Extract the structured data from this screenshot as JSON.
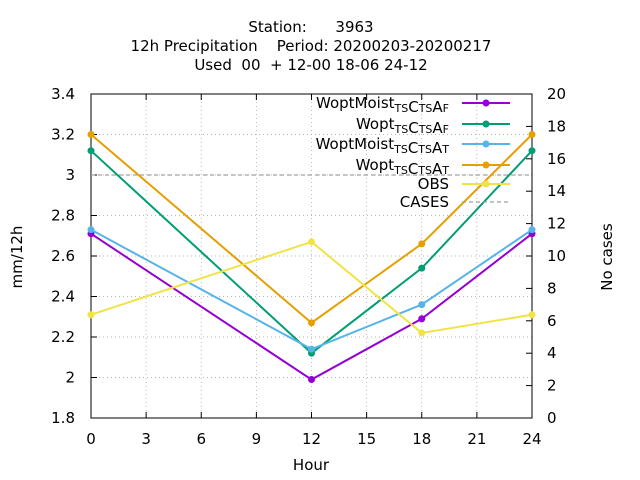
{
  "chart_data": {
    "type": "line",
    "title_lines": [
      "Station:      3963",
      "12h Precipitation    Period: 20200203-20200217",
      "Used  00  + 12-00 18-06 24-12"
    ],
    "xlabel": "Hour",
    "ylabel": "mm/12h",
    "y2label": "No cases",
    "xlim": [
      0,
      24
    ],
    "ylim": [
      1.8,
      3.4
    ],
    "y2lim": [
      0,
      20
    ],
    "xticks": [
      0,
      3,
      6,
      9,
      12,
      15,
      18,
      21,
      24
    ],
    "yticks": [
      1.8,
      2.0,
      2.2,
      2.4,
      2.6,
      2.8,
      3.0,
      3.2,
      3.4
    ],
    "ytick_labels": [
      "1.8",
      "2",
      "2.2",
      "2.4",
      "2.6",
      "2.8",
      "3",
      "3.2",
      "3.4"
    ],
    "y2ticks": [
      0,
      2,
      4,
      6,
      8,
      10,
      12,
      14,
      16,
      18,
      20
    ],
    "grid": true,
    "legend_position": "top-right",
    "x": [
      0,
      12,
      18,
      24
    ],
    "series": [
      {
        "name": "WoptMoist_TSC_TSA_F",
        "color": "#9400d3",
        "marker": "circle",
        "values": [
          2.71,
          1.99,
          2.29,
          2.71
        ]
      },
      {
        "name": "Wopt_TSC_TSA_F",
        "color": "#009e73",
        "marker": "circle",
        "values": [
          3.12,
          2.12,
          2.54,
          3.12
        ]
      },
      {
        "name": "WoptMoist_TSC_TSA_T",
        "color": "#56b4e9",
        "marker": "circle",
        "values": [
          2.73,
          2.14,
          2.36,
          2.73
        ]
      },
      {
        "name": "Wopt_TSC_TSA_T",
        "color": "#e69f00",
        "marker": "circle",
        "values": [
          3.2,
          2.27,
          2.66,
          3.2
        ]
      },
      {
        "name": "OBS",
        "color": "#f0e442",
        "marker": "circle",
        "values": [
          2.31,
          2.67,
          2.22,
          2.31
        ]
      }
    ],
    "cases": {
      "name": "CASES",
      "color": "#a0a0a0",
      "dash": true,
      "axis": "y2",
      "value": 15
    }
  },
  "legend": [
    {
      "main": "WoptMoist",
      "parts": [
        [
          "sub",
          "TS"
        ],
        [
          "n",
          "C"
        ],
        [
          "sub",
          "TS"
        ],
        [
          "n",
          "A"
        ],
        [
          "sub",
          "F"
        ]
      ]
    },
    {
      "main": "Wopt",
      "parts": [
        [
          "sub",
          "TS"
        ],
        [
          "n",
          "C"
        ],
        [
          "sub",
          "TS"
        ],
        [
          "n",
          "A"
        ],
        [
          "sub",
          "F"
        ]
      ]
    },
    {
      "main": "WoptMoist",
      "parts": [
        [
          "sub",
          "TS"
        ],
        [
          "n",
          "C"
        ],
        [
          "sub",
          "TS"
        ],
        [
          "n",
          "A"
        ],
        [
          "sub",
          "T"
        ]
      ]
    },
    {
      "main": "Wopt",
      "parts": [
        [
          "sub",
          "TS"
        ],
        [
          "n",
          "C"
        ],
        [
          "sub",
          "TS"
        ],
        [
          "n",
          "A"
        ],
        [
          "sub",
          "T"
        ]
      ]
    },
    {
      "main": "OBS",
      "parts": []
    },
    {
      "main": "CASES",
      "parts": []
    }
  ]
}
